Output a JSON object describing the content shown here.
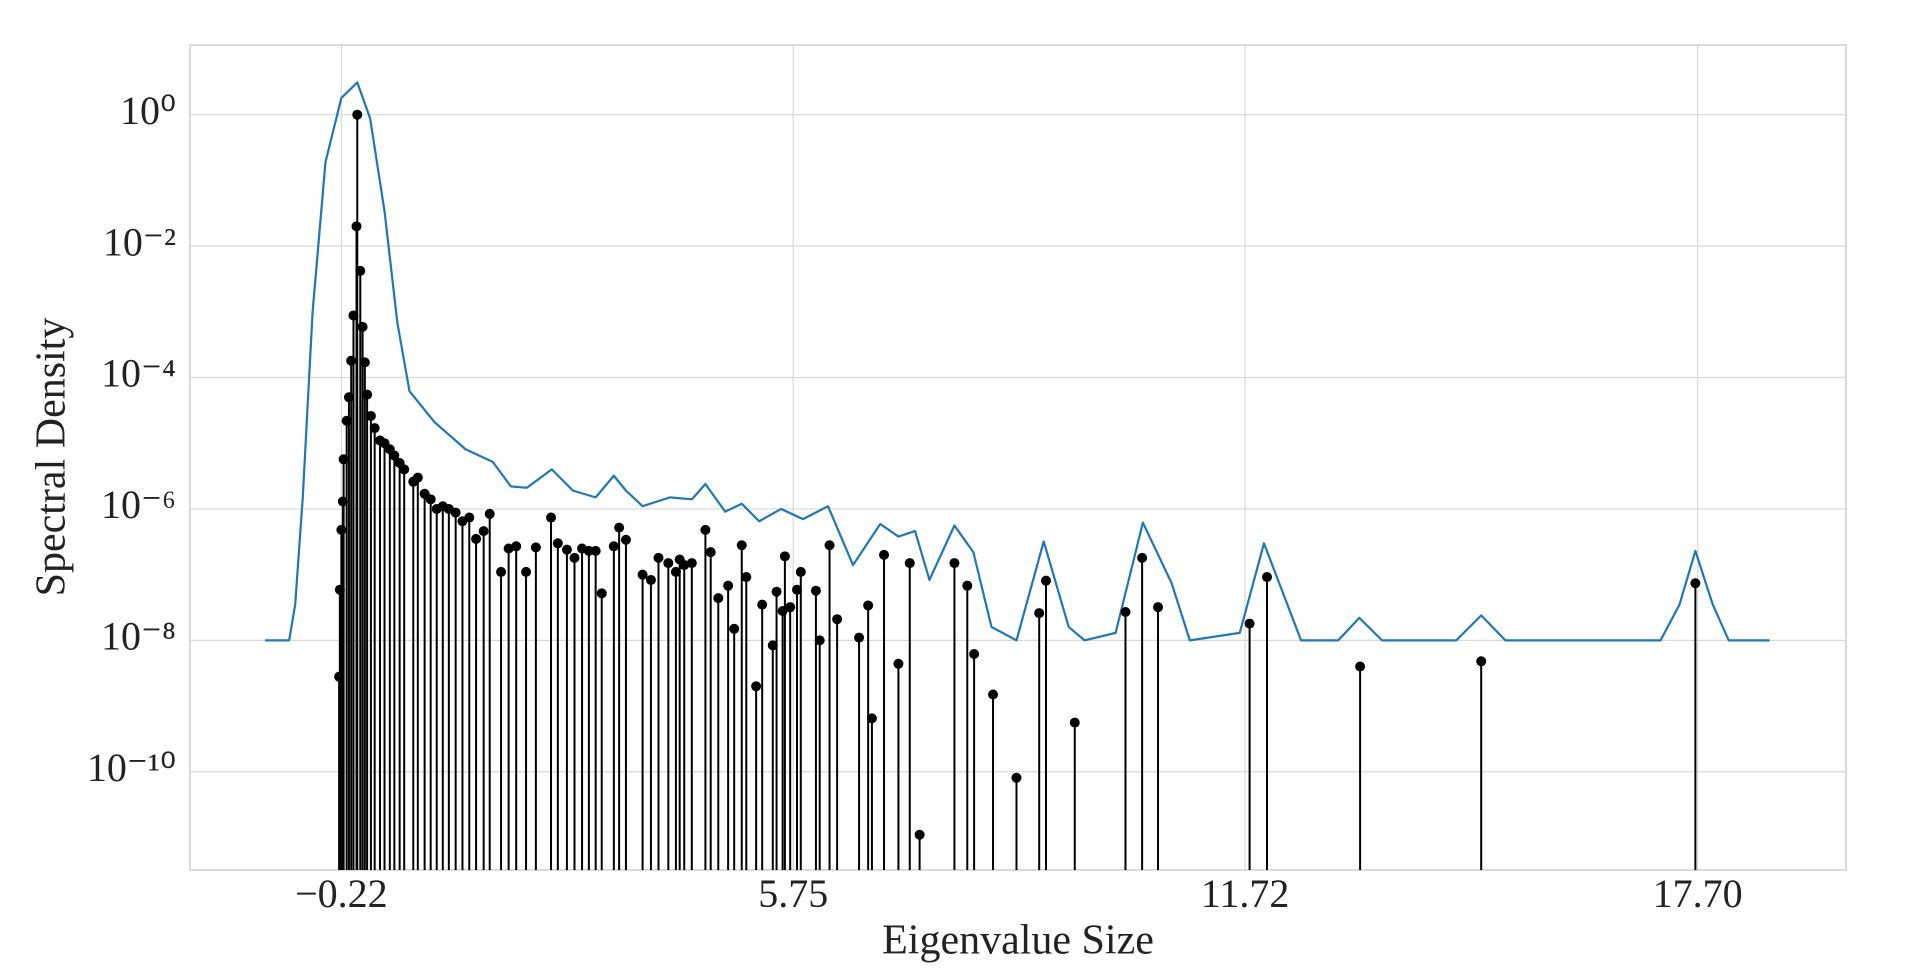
{
  "chart_data": {
    "type": "stem",
    "x_label": "Eigenvalue Size",
    "y_label": "Spectral Density",
    "log_y": true,
    "grid": true,
    "xlim": [
      -2.22,
      19.66
    ],
    "ylim": [
      3.2e-12,
      11.5
    ],
    "xticks": [
      {
        "value": -0.22,
        "label": "−0.22"
      },
      5.75,
      11.72,
      {
        "value": 17.7,
        "label": "17.70"
      }
    ],
    "yticks": [
      {
        "value": 1,
        "label": "10⁰"
      },
      {
        "value": 0.01,
        "label": "10⁻²"
      },
      {
        "value": 0.0001,
        "label": "10⁻⁴"
      },
      {
        "value": 1e-06,
        "label": "10⁻⁶"
      },
      {
        "value": 1e-08,
        "label": "10⁻⁸"
      },
      {
        "value": 1e-10,
        "label": "10⁻¹⁰"
      }
    ],
    "series": [
      {
        "kind": "line",
        "color": "#1f77b4",
        "x": [
          -1.23,
          -0.91,
          -0.83,
          -0.73,
          -0.6,
          -0.43,
          -0.22,
          -0.01,
          0.16,
          0.35,
          0.52,
          0.68,
          1.01,
          1.42,
          1.78,
          2.02,
          2.23,
          2.56,
          2.84,
          3.14,
          3.38,
          3.54,
          3.76,
          4.12,
          4.41,
          4.59,
          4.85,
          5.07,
          5.3,
          5.59,
          5.88,
          6.21,
          6.54,
          6.9,
          7.14,
          7.36,
          7.55,
          7.88,
          8.13,
          8.37,
          8.7,
          9.06,
          9.39,
          9.6,
          10.01,
          10.37,
          10.75,
          10.99,
          11.65,
          11.97,
          12.46,
          12.95,
          13.23,
          13.53,
          14.51,
          14.84,
          15.16,
          17.21,
          17.46,
          17.67,
          17.9,
          18.11,
          18.65
        ],
        "values": [
          1e-08,
          1e-08,
          3.5e-08,
          1.5e-06,
          0.001,
          0.19,
          1.8,
          3.1,
          0.88,
          0.034,
          0.00068,
          6.2e-05,
          2.1e-05,
          8.1e-06,
          5.2e-06,
          2.2e-06,
          2.1e-06,
          4e-06,
          1.9e-06,
          1.5e-06,
          3.2e-06,
          1.9e-06,
          1.1e-06,
          1.5e-06,
          1.4e-06,
          2.4e-06,
          9.1e-07,
          1.2e-06,
          6.5e-07,
          1e-06,
          7e-07,
          1.1e-06,
          1.4e-07,
          5.9e-07,
          3.8e-07,
          4.6e-07,
          8.3e-08,
          5.6e-07,
          2.2e-07,
          1.6e-08,
          1e-08,
          3.2e-07,
          1.6e-08,
          1e-08,
          1.3e-08,
          6.2e-07,
          7.4e-08,
          1e-08,
          1.3e-08,
          3e-07,
          1e-08,
          1e-08,
          2.2e-08,
          1e-08,
          1e-08,
          2.4e-08,
          1e-08,
          1e-08,
          3.5e-08,
          2.3e-07,
          3.5e-08,
          1e-08,
          1e-08
        ]
      },
      {
        "kind": "stem",
        "color": "#000000",
        "x": [
          -0.25,
          -0.24,
          -0.22,
          -0.2,
          -0.19,
          -0.15,
          -0.12,
          -0.09,
          -0.06,
          -0.02,
          -0.01,
          0.03,
          0.06,
          0.09,
          0.12,
          0.17,
          0.22,
          0.29,
          0.35,
          0.42,
          0.48,
          0.55,
          0.61,
          0.73,
          0.79,
          0.88,
          0.96,
          1.04,
          1.12,
          1.2,
          1.29,
          1.38,
          1.47,
          1.56,
          1.66,
          1.74,
          1.89,
          1.99,
          2.09,
          2.22,
          2.35,
          2.55,
          2.64,
          2.76,
          2.86,
          2.96,
          3.05,
          3.14,
          3.22,
          3.38,
          3.45,
          3.54,
          3.76,
          3.87,
          3.97,
          4.1,
          4.2,
          4.25,
          4.31,
          4.41,
          4.59,
          4.66,
          4.76,
          4.89,
          4.97,
          5.07,
          5.13,
          5.26,
          5.34,
          5.48,
          5.53,
          5.61,
          5.64,
          5.71,
          5.8,
          5.85,
          6.05,
          6.1,
          6.23,
          6.33,
          6.62,
          6.74,
          6.79,
          6.95,
          7.14,
          7.29,
          7.42,
          7.88,
          8.05,
          8.14,
          8.39,
          8.7,
          9.0,
          9.09,
          9.47,
          10.14,
          10.36,
          10.57,
          11.78,
          12.01,
          13.24,
          14.84,
          17.67
        ],
        "values": [
          2.8e-09,
          5.9e-08,
          4.8e-07,
          1.3e-06,
          5.7e-06,
          2.2e-05,
          5e-05,
          0.00018,
          0.00088,
          0.02,
          1,
          0.0042,
          0.00059,
          0.00017,
          5.5e-05,
          2.6e-05,
          1.7e-05,
          1.1e-05,
          1e-05,
          8.1e-06,
          6.5e-06,
          5e-06,
          4e-06,
          2.6e-06,
          3e-06,
          1.7e-06,
          1.4e-06,
          1e-06,
          1.1e-06,
          1e-06,
          8.8e-07,
          6.5e-07,
          7.4e-07,
          3.5e-07,
          4.6e-07,
          8.4e-07,
          1.1e-07,
          2.5e-07,
          2.7e-07,
          1.1e-07,
          2.6e-07,
          7.4e-07,
          3e-07,
          2.4e-07,
          1.8e-07,
          2.5e-07,
          2.3e-07,
          2.3e-07,
          5.2e-08,
          2.7e-07,
          5.2e-07,
          3.4e-07,
          1e-07,
          8.3e-08,
          1.8e-07,
          1.5e-07,
          1.1e-07,
          1.7e-07,
          1.4e-07,
          1.5e-07,
          4.8e-07,
          2.2e-07,
          4.4e-08,
          6.8e-08,
          1.5e-08,
          2.8e-07,
          9.2e-08,
          2e-09,
          3.5e-08,
          8.4e-09,
          5.5e-08,
          2.8e-08,
          1.9e-07,
          3.2e-08,
          5.9e-08,
          1.1e-07,
          5.7e-08,
          1e-08,
          2.8e-07,
          2.1e-08,
          1.1e-08,
          3.4e-08,
          6.5e-10,
          2e-07,
          4.4e-09,
          1.5e-07,
          1.1e-11,
          1.5e-07,
          6.8e-08,
          6.2e-09,
          1.5e-09,
          8.1e-11,
          2.6e-08,
          8.1e-08,
          5.6e-10,
          2.7e-08,
          1.8e-07,
          3.2e-08,
          1.8e-08,
          9.2e-08,
          4e-09,
          4.8e-09,
          7.4e-08
        ]
      }
    ]
  }
}
